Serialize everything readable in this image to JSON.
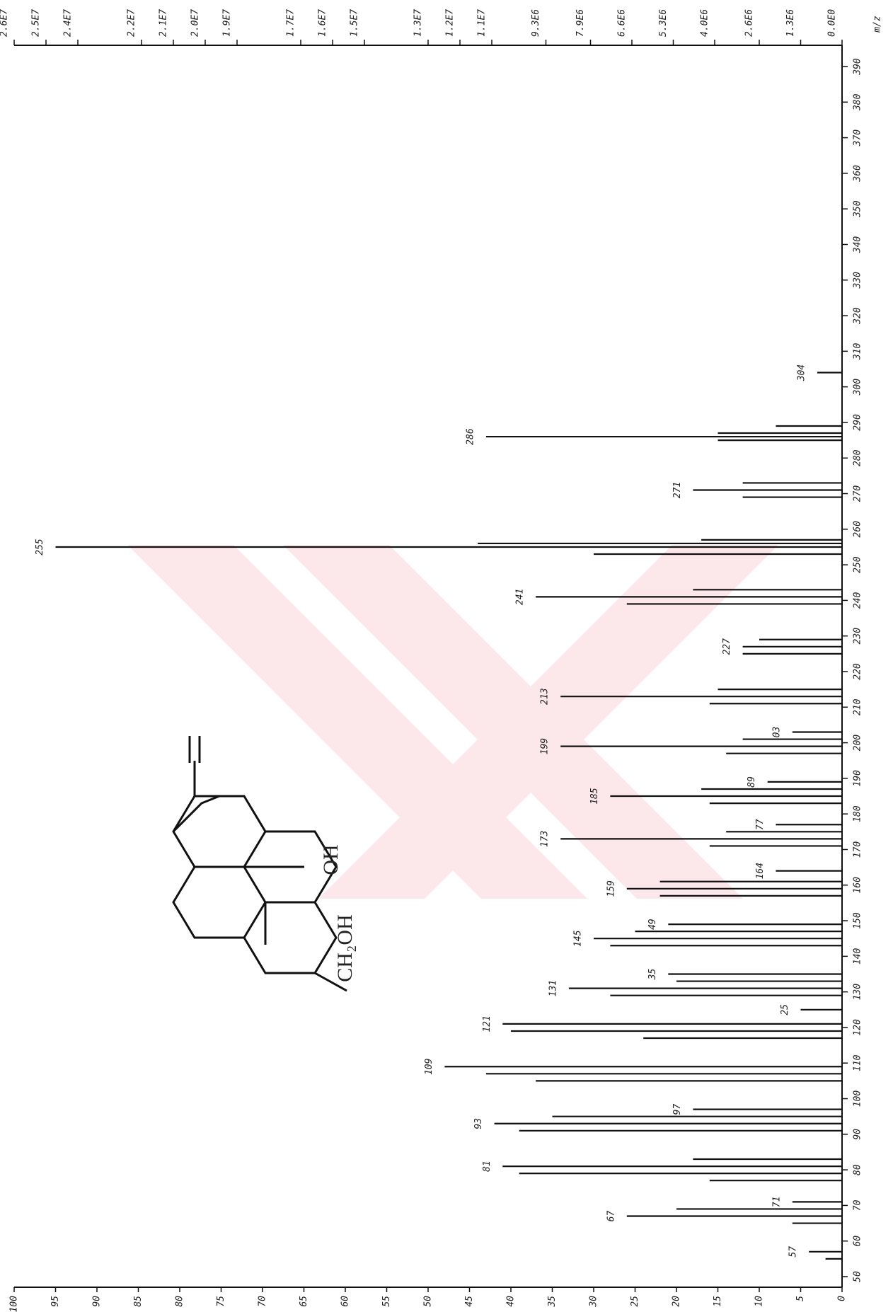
{
  "chart_data": {
    "type": "bar",
    "x_label": "m/z",
    "x": [
      55,
      57,
      65,
      67,
      69,
      71,
      77,
      79,
      81,
      83,
      91,
      93,
      95,
      97,
      105,
      107,
      109,
      117,
      119,
      121,
      125,
      129,
      131,
      133,
      135,
      143,
      145,
      147,
      149,
      157,
      159,
      161,
      164,
      171,
      173,
      175,
      177,
      183,
      185,
      187,
      189,
      197,
      199,
      201,
      203,
      211,
      213,
      215,
      225,
      227,
      229,
      239,
      241,
      243,
      253,
      255,
      256,
      257,
      269,
      271,
      273,
      285,
      286,
      287,
      289,
      304
    ],
    "values": [
      2,
      4,
      6,
      26,
      20,
      6,
      16,
      39,
      41,
      18,
      39,
      42,
      35,
      18,
      37,
      43,
      48,
      24,
      40,
      41,
      5,
      28,
      33,
      20,
      21,
      28,
      30,
      25,
      21,
      22,
      26,
      22,
      8,
      16,
      34,
      14,
      8,
      16,
      28,
      17,
      9,
      14,
      34,
      12,
      6,
      16,
      34,
      15,
      12,
      12,
      10,
      26,
      37,
      18,
      30,
      95,
      44,
      17,
      12,
      18,
      12,
      15,
      43,
      15,
      8,
      3
    ],
    "peak_labels": [
      null,
      "57",
      null,
      "67",
      null,
      "71",
      null,
      null,
      "81",
      null,
      null,
      "93",
      null,
      "97",
      null,
      null,
      "109",
      null,
      null,
      "121",
      "25",
      null,
      "131",
      null,
      "35",
      null,
      "145",
      null,
      "49",
      null,
      "159",
      null,
      "164",
      null,
      "173",
      null,
      "77",
      null,
      "185",
      null,
      "89",
      null,
      "199",
      null,
      "03",
      null,
      "213",
      null,
      null,
      "227",
      null,
      null,
      "241",
      null,
      null,
      "255",
      null,
      null,
      null,
      "271",
      null,
      null,
      "286",
      null,
      null,
      "304"
    ],
    "color": "#111111",
    "xlim": [
      50,
      390
    ],
    "xticks": [
      50,
      60,
      70,
      80,
      90,
      100,
      110,
      120,
      130,
      140,
      150,
      160,
      170,
      180,
      190,
      200,
      210,
      220,
      230,
      240,
      250,
      260,
      270,
      280,
      290,
      300,
      310,
      320,
      330,
      340,
      350,
      360,
      370,
      380,
      390
    ],
    "ylim": [
      0,
      100
    ],
    "yticks": [
      0,
      5,
      10,
      15,
      20,
      25,
      30,
      35,
      40,
      45,
      50,
      55,
      60,
      65,
      70,
      75,
      80,
      85,
      90,
      95,
      100
    ],
    "y2lim": [
      0,
      26000000
    ],
    "y2ticks": [
      {
        "value": 0,
        "label": "0.0E0"
      },
      {
        "value": 1300000,
        "label": "1.3E6"
      },
      {
        "value": 2600000,
        "label": "2.6E6"
      },
      {
        "value": 4000000,
        "label": "4.0E6"
      },
      {
        "value": 5300000,
        "label": "5.3E6"
      },
      {
        "value": 6600000,
        "label": "6.6E6"
      },
      {
        "value": 7900000,
        "label": "7.9E6"
      },
      {
        "value": 9300000,
        "label": "9.3E6"
      },
      {
        "value": 11000000,
        "label": "1.1E7"
      },
      {
        "value": 12000000,
        "label": "1.2E7"
      },
      {
        "value": 13000000,
        "label": "1.3E7"
      },
      {
        "value": 15000000,
        "label": "1.5E7"
      },
      {
        "value": 16000000,
        "label": "1.6E7"
      },
      {
        "value": 17000000,
        "label": "1.7E7"
      },
      {
        "value": 19000000,
        "label": "1.9E7"
      },
      {
        "value": 20000000,
        "label": "2.0E7"
      },
      {
        "value": 21000000,
        "label": "2.1E7"
      },
      {
        "value": 22000000,
        "label": "2.2E7"
      },
      {
        "value": 24000000,
        "label": "2.4E7"
      },
      {
        "value": 25000000,
        "label": "2.5E7"
      },
      {
        "value": 26000000,
        "label": "2.6E7"
      }
    ],
    "structure_labels": [
      "OH",
      "CH₂OH"
    ]
  }
}
